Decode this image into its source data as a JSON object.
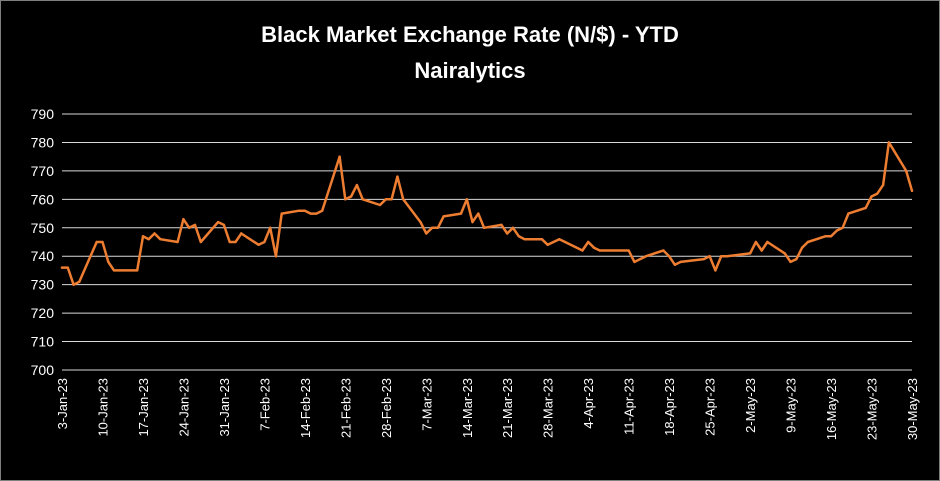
{
  "chart_data": {
    "type": "line",
    "title": "Black Market Exchange Rate (N/$) - YTD",
    "subtitle": "Nairalytics",
    "xlabel": "",
    "ylabel": "",
    "ylim": [
      700,
      790
    ],
    "yticks": [
      700,
      710,
      720,
      730,
      740,
      750,
      760,
      770,
      780,
      790
    ],
    "xlim": [
      "2023-01-03",
      "2023-05-30"
    ],
    "xtick_labels": [
      "3-Jan-23",
      "10-Jan-23",
      "17-Jan-23",
      "24-Jan-23",
      "31-Jan-23",
      "7-Feb-23",
      "14-Feb-23",
      "21-Feb-23",
      "28-Feb-23",
      "7-Mar-23",
      "14-Mar-23",
      "21-Mar-23",
      "28-Mar-23",
      "4-Apr-23",
      "11-Apr-23",
      "18-Apr-23",
      "25-Apr-23",
      "2-May-23",
      "9-May-23",
      "16-May-23",
      "23-May-23",
      "30-May-23"
    ],
    "grid": "horizontal",
    "colors": {
      "line": "#ed7d31",
      "background": "#000000",
      "grid": "#d9d9d9",
      "text": "#ffffff"
    },
    "series": [
      {
        "x": [
          "2023-01-03",
          "2023-01-04",
          "2023-01-05",
          "2023-01-06",
          "2023-01-09",
          "2023-01-10",
          "2023-01-11",
          "2023-01-12",
          "2023-01-13",
          "2023-01-16",
          "2023-01-17",
          "2023-01-18",
          "2023-01-19",
          "2023-01-20",
          "2023-01-23",
          "2023-01-24",
          "2023-01-25",
          "2023-01-26",
          "2023-01-27",
          "2023-01-30",
          "2023-01-31",
          "2023-02-01",
          "2023-02-02",
          "2023-02-03",
          "2023-02-06",
          "2023-02-07",
          "2023-02-08",
          "2023-02-09",
          "2023-02-10",
          "2023-02-13",
          "2023-02-14",
          "2023-02-15",
          "2023-02-16",
          "2023-02-17",
          "2023-02-20",
          "2023-02-21",
          "2023-02-22",
          "2023-02-23",
          "2023-02-24",
          "2023-02-27",
          "2023-02-28",
          "2023-03-01",
          "2023-03-02",
          "2023-03-03",
          "2023-03-06",
          "2023-03-07",
          "2023-03-08",
          "2023-03-09",
          "2023-03-10",
          "2023-03-13",
          "2023-03-14",
          "2023-03-15",
          "2023-03-16",
          "2023-03-17",
          "2023-03-20",
          "2023-03-21",
          "2023-03-22",
          "2023-03-23",
          "2023-03-24",
          "2023-03-27",
          "2023-03-28",
          "2023-03-29",
          "2023-03-30",
          "2023-03-31",
          "2023-04-03",
          "2023-04-04",
          "2023-04-05",
          "2023-04-06",
          "2023-04-11",
          "2023-04-12",
          "2023-04-13",
          "2023-04-14",
          "2023-04-17",
          "2023-04-18",
          "2023-04-19",
          "2023-04-20",
          "2023-04-24",
          "2023-04-25",
          "2023-04-26",
          "2023-04-27",
          "2023-04-28",
          "2023-05-02",
          "2023-05-03",
          "2023-05-04",
          "2023-05-05",
          "2023-05-08",
          "2023-05-09",
          "2023-05-10",
          "2023-05-11",
          "2023-05-12",
          "2023-05-15",
          "2023-05-16",
          "2023-05-17",
          "2023-05-18",
          "2023-05-19",
          "2023-05-22",
          "2023-05-23",
          "2023-05-24",
          "2023-05-25",
          "2023-05-26",
          "2023-05-29",
          "2023-05-30"
        ],
        "values": [
          736,
          736,
          730,
          731,
          745,
          745,
          738,
          735,
          735,
          735,
          747,
          746,
          748,
          746,
          745,
          753,
          750,
          751,
          745,
          752,
          751,
          745,
          745,
          748,
          744,
          745,
          750,
          740,
          755,
          756,
          756,
          755,
          755,
          756,
          775,
          760,
          761,
          765,
          760,
          758,
          760,
          760,
          768,
          760,
          752,
          748,
          750,
          750,
          754,
          755,
          760,
          752,
          755,
          750,
          751,
          748,
          750,
          747,
          746,
          746,
          744,
          745,
          746,
          745,
          742,
          745,
          743,
          742,
          742,
          738,
          739,
          740,
          742,
          740,
          737,
          738,
          739,
          740,
          735,
          740,
          740,
          741,
          745,
          742,
          745,
          741,
          738,
          739,
          743,
          745,
          747,
          747,
          749,
          750,
          755,
          757,
          761,
          762,
          765,
          780,
          770,
          763
        ]
      }
    ]
  }
}
